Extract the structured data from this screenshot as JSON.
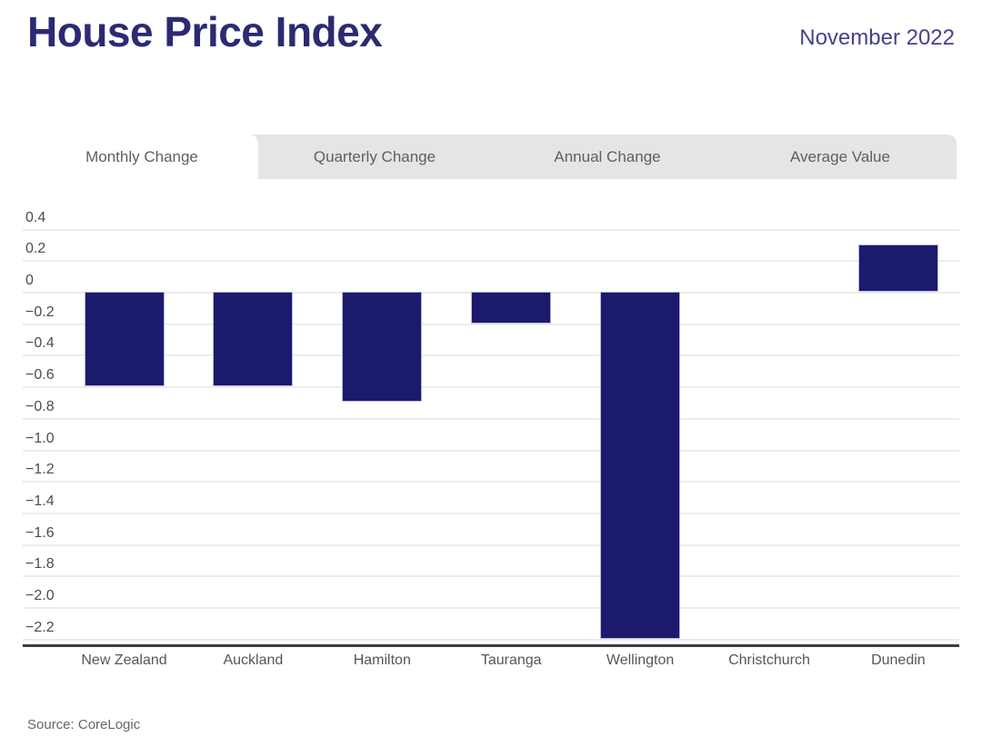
{
  "header": {
    "title": "House Price Index",
    "date": "November 2022"
  },
  "tabs": {
    "items": [
      {
        "label": "Monthly Change",
        "active": true
      },
      {
        "label": "Quarterly Change",
        "active": false
      },
      {
        "label": "Annual Change",
        "active": false
      },
      {
        "label": "Average Value",
        "active": false
      }
    ]
  },
  "chart_data": {
    "type": "bar",
    "title": "House Price Index — Monthly Change — November 2022",
    "categories": [
      "New Zealand",
      "Auckland",
      "Hamilton",
      "Tauranga",
      "Wellington",
      "Christchurch",
      "Dunedin"
    ],
    "values": [
      -0.6,
      -0.6,
      -0.7,
      -0.2,
      -2.2,
      0,
      0.3
    ],
    "xlabel": "",
    "ylabel": "",
    "ylim": [
      -2.3,
      0.45
    ],
    "grid": true,
    "legend": "none",
    "y_ticks": [
      {
        "v": 0.4,
        "label": "0.4"
      },
      {
        "v": 0.2,
        "label": "0.2"
      },
      {
        "v": 0,
        "label": "0"
      },
      {
        "v": -0.2,
        "label": "−0.2"
      },
      {
        "v": -0.4,
        "label": "−0.4"
      },
      {
        "v": -0.6,
        "label": "−0.6"
      },
      {
        "v": -0.8,
        "label": "−0.8"
      },
      {
        "v": -1.0,
        "label": "−1.0"
      },
      {
        "v": -1.2,
        "label": "−1.2"
      },
      {
        "v": -1.4,
        "label": "−1.4"
      },
      {
        "v": -1.6,
        "label": "−1.6"
      },
      {
        "v": -1.8,
        "label": "−1.8"
      },
      {
        "v": -2.0,
        "label": "−2.0"
      },
      {
        "v": -2.2,
        "label": "−2.2"
      }
    ]
  },
  "source": {
    "text": "Source: CoreLogic"
  },
  "colors": {
    "title": "#2b2a72",
    "date": "#45428c",
    "tab_bg": "#e5e5e5",
    "tab_active_bg": "#ffffff",
    "tab_text": "#5f5f5f",
    "bar": "#1b1a6c",
    "bar_border": "#b9b7da",
    "gridline": "#ececec",
    "tick_text": "#4c4c4c",
    "axis_line": "#3d3d3d",
    "category_text": "#565656",
    "source_text": "#666666"
  }
}
